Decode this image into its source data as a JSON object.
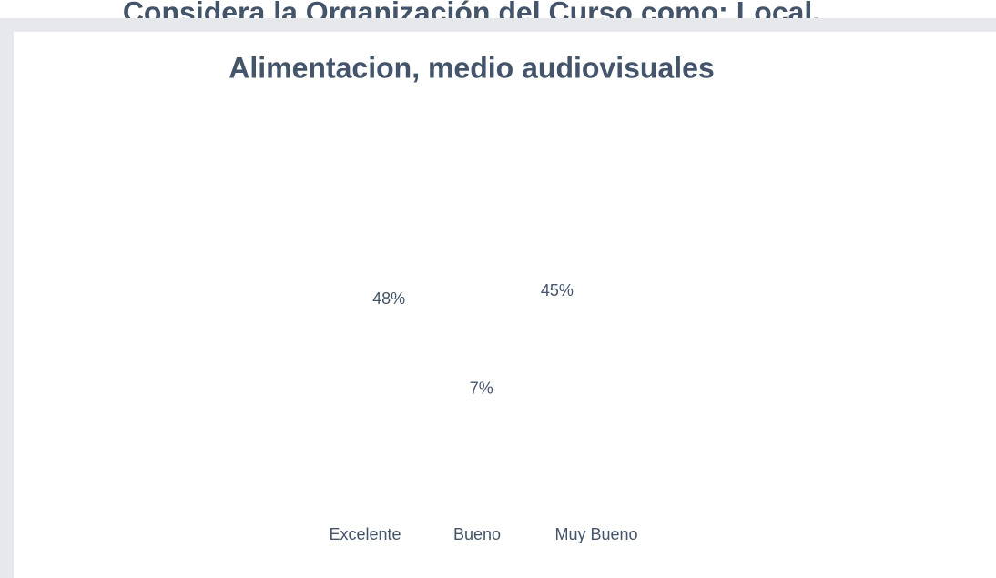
{
  "chart_data": {
    "type": "pie",
    "title": [
      "Considera la Organización del Curso como: Local,",
      "Alimentacion, medio audiovisuales"
    ],
    "categories": [
      "Excelente",
      "Bueno",
      "Muy Bueno"
    ],
    "values": [
      48,
      7,
      45
    ],
    "value_labels": [
      "48%",
      "7%",
      "45%"
    ]
  }
}
